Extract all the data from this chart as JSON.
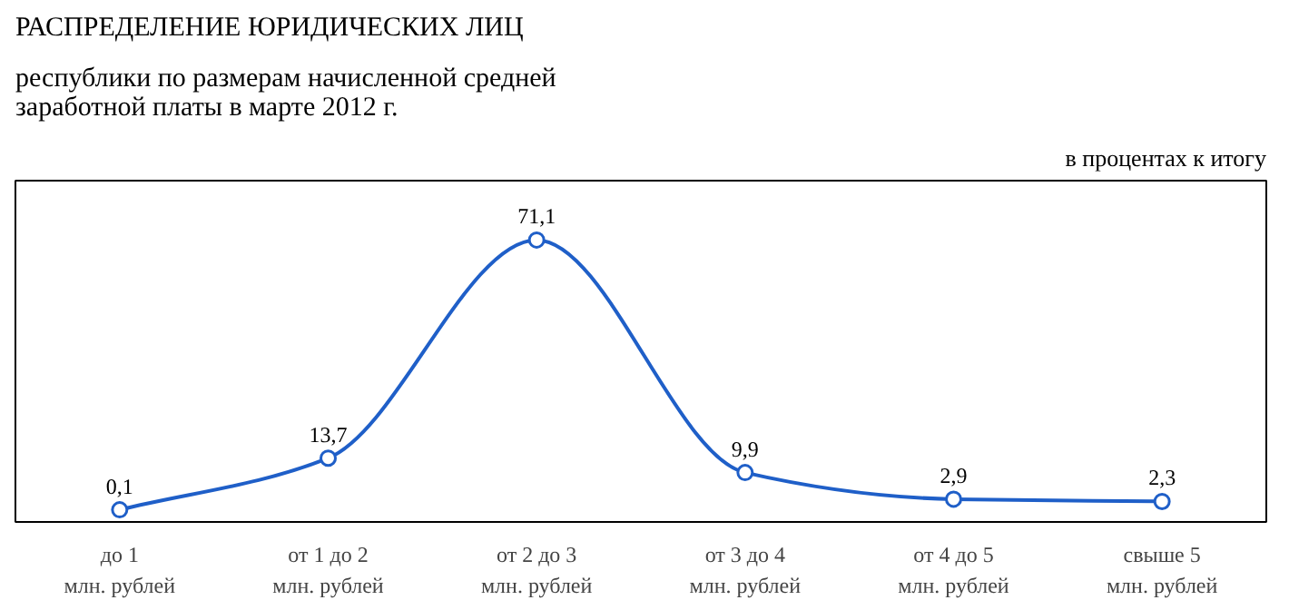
{
  "chart_data": {
    "type": "line",
    "title": "РАСПРЕДЕЛЕНИЕ ЮРИДИЧЕСКИХ ЛИЦ",
    "subtitle": "республики по размерам начисленной средней\nзаработной платы в марте 2012 г.",
    "annotations": [
      "в процентах к итогу"
    ],
    "categories": [
      "до 1\nмлн. рублей",
      "от 1 до 2\nмлн. рублей",
      "от 2 до 3\nмлн. рублей",
      "от 3 до 4\nмлн. рублей",
      "от 4 до 5\nмлн. рублей",
      "свыше 5\nмлн. рублей"
    ],
    "series": [
      {
        "color": "#1f5fc8",
        "values": [
          0.1,
          13.7,
          71.1,
          9.9,
          2.9,
          2.3
        ],
        "value_labels": [
          "0,1",
          "13,7",
          "71,1",
          "9,9",
          "2,9",
          "2,3"
        ]
      }
    ],
    "marker": "circle",
    "line_style": "solid"
  }
}
